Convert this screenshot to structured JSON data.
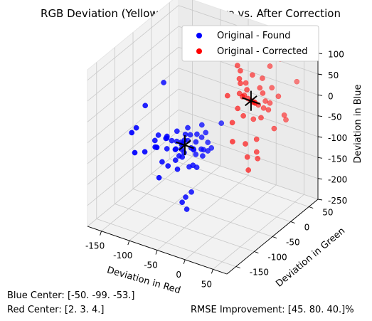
{
  "chart_data": {
    "type": "scatter",
    "projection": "3d",
    "title": "RGB Deviation (Yellow Light): Before vs. After Correction",
    "xlabel": "Deviation in Red",
    "ylabel": "Deviation in Green",
    "zlabel": "Deviation in Blue",
    "xlim": [
      -175,
      75
    ],
    "ylim": [
      -175,
      75
    ],
    "zlim": [
      -250,
      125
    ],
    "xticks": [
      -150,
      -100,
      -50,
      0,
      50
    ],
    "yticks": [
      -150,
      -100,
      -50,
      0,
      50
    ],
    "zticks": [
      -250,
      -200,
      -150,
      -100,
      -50,
      0,
      50,
      100
    ],
    "grid": true,
    "legend_position": "top-right",
    "legend": [
      {
        "label": "Original - Found",
        "color": "#0000ff"
      },
      {
        "label": "Original - Corrected",
        "color": "#ff0000"
      }
    ],
    "series": [
      {
        "name": "Original - Found",
        "color": "#0000ff",
        "points": [
          [
            -62,
            -72,
            -67
          ],
          [
            -54,
            -103,
            -45
          ],
          [
            -40,
            -91,
            -63
          ],
          [
            -44,
            -84,
            -72
          ],
          [
            -73,
            -116,
            -35
          ],
          [
            -27,
            -104,
            -31
          ],
          [
            -47,
            -113,
            -51
          ],
          [
            -35,
            -124,
            -46
          ],
          [
            -82,
            -86,
            -66
          ],
          [
            -29,
            -68,
            -59
          ],
          [
            -9,
            -113,
            -50
          ],
          [
            -68,
            -70,
            -56
          ],
          [
            -50,
            -100,
            -40
          ],
          [
            -20,
            -100,
            -48
          ],
          [
            -65,
            -125,
            -20
          ],
          [
            -40,
            -140,
            -55
          ],
          [
            -100,
            -100,
            -80
          ],
          [
            -90,
            -60,
            -90
          ],
          [
            -55,
            -45,
            -75
          ],
          [
            -30,
            -150,
            -65
          ],
          [
            -15,
            -120,
            -75
          ],
          [
            -70,
            -150,
            -30
          ],
          [
            -45,
            -60,
            -30
          ],
          [
            -25,
            -80,
            -25
          ],
          [
            -60,
            -130,
            -85
          ],
          [
            -35,
            -110,
            -90
          ],
          [
            -75,
            -110,
            -65
          ],
          [
            -42,
            -78,
            -38
          ],
          [
            -58,
            -96,
            -57
          ],
          [
            -48,
            -118,
            -64
          ],
          [
            -5,
            -95,
            -42
          ],
          [
            -12,
            -135,
            -58
          ],
          [
            -80,
            -130,
            -50
          ],
          [
            -64,
            -140,
            -70
          ],
          [
            -38,
            -66,
            -82
          ],
          [
            -52,
            -88,
            -20
          ],
          [
            -90,
            -120,
            -45
          ],
          [
            -70,
            -90,
            -35
          ],
          [
            -22,
            -125,
            -28
          ],
          [
            -33,
            -95,
            -70
          ],
          [
            -46,
            -130,
            -38
          ],
          [
            -56,
            -75,
            -48
          ],
          [
            -18,
            -85,
            -62
          ],
          [
            -85,
            -95,
            -55
          ],
          [
            -60,
            -110,
            -60
          ],
          [
            -40,
            -120,
            -30
          ],
          [
            -95,
            -140,
            -60
          ],
          [
            -28,
            -140,
            -42
          ],
          [
            -120,
            -50,
            30
          ],
          [
            -10,
            -60,
            -10
          ],
          [
            -100,
            -160,
            -50
          ],
          [
            -15,
            -160,
            -130
          ],
          [
            -8,
            -158,
            -145
          ],
          [
            -12,
            -155,
            -120
          ],
          [
            -5,
            -150,
            -108
          ],
          [
            -140,
            -70,
            -20
          ],
          [
            -110,
            -80,
            -70
          ],
          [
            -130,
            -110,
            -40
          ],
          [
            -125,
            -130,
            -35
          ],
          [
            -50,
            -170,
            -80
          ]
        ]
      },
      {
        "name": "Original - Corrected",
        "color": "#ff0000",
        "points": [
          [
            2,
            3,
            4
          ],
          [
            10,
            15,
            30
          ],
          [
            -15,
            0,
            40
          ],
          [
            20,
            10,
            -10
          ],
          [
            5,
            -10,
            20
          ],
          [
            -5,
            20,
            -15
          ],
          [
            15,
            -5,
            10
          ],
          [
            25,
            0,
            35
          ],
          [
            -10,
            10,
            20
          ],
          [
            0,
            -15,
            -20
          ],
          [
            12,
            8,
            -5
          ],
          [
            -8,
            -5,
            15
          ],
          [
            30,
            12,
            5
          ],
          [
            -20,
            5,
            10
          ],
          [
            8,
            25,
            45
          ],
          [
            5,
            -20,
            35
          ],
          [
            18,
            18,
            0
          ],
          [
            -12,
            -12,
            -10
          ],
          [
            22,
            -18,
            25
          ],
          [
            0,
            10,
            60
          ],
          [
            -25,
            15,
            55
          ],
          [
            -30,
            20,
            30
          ],
          [
            35,
            -20,
            -5
          ],
          [
            40,
            20,
            20
          ],
          [
            -35,
            -5,
            5
          ],
          [
            40,
            -40,
            -40
          ],
          [
            50,
            -55,
            -55
          ],
          [
            55,
            -60,
            -65
          ],
          [
            30,
            -50,
            -80
          ],
          [
            45,
            -70,
            -90
          ],
          [
            20,
            -40,
            -60
          ],
          [
            10,
            -60,
            -45
          ],
          [
            60,
            10,
            -20
          ],
          [
            65,
            -30,
            -10
          ],
          [
            -40,
            30,
            50
          ],
          [
            -50,
            20,
            80
          ],
          [
            -20,
            40,
            90
          ],
          [
            30,
            40,
            90
          ],
          [
            70,
            -10,
            10
          ],
          [
            -5,
            50,
            100
          ],
          [
            60,
            40,
            50
          ],
          [
            15,
            35,
            70
          ],
          [
            -10,
            -30,
            -30
          ],
          [
            25,
            25,
            30
          ],
          [
            5,
            5,
            -40
          ],
          [
            -25,
            30,
            15
          ],
          [
            45,
            -15,
            15
          ]
        ]
      },
      {
        "name": "",
        "color": "#000000",
        "markers": "x",
        "points": [
          [
            -50,
            -99,
            -53
          ],
          [
            2,
            3,
            4
          ]
        ]
      }
    ],
    "annotations": {
      "blue_center": "Blue Center: [-50. -99. -53.]",
      "red_center": "Red Center: [2. 3. 4.]",
      "rmse": "RMSE Improvement: [45. 80. 40.]%"
    }
  }
}
